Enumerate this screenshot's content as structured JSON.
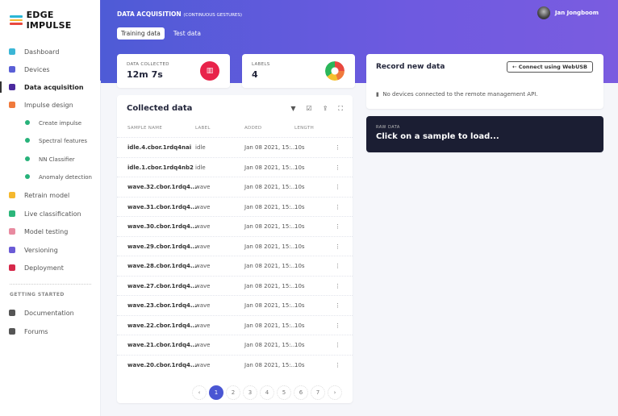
{
  "brand": {
    "name": "EDGE IMPULSE",
    "colors": [
      "#2bb6d6",
      "#f5b82e",
      "#e8483f",
      "#7bc94c"
    ]
  },
  "sidebar": {
    "items": [
      {
        "label": "Dashboard",
        "icon": "monitor-icon",
        "color": "#3bb6d6"
      },
      {
        "label": "Devices",
        "icon": "device-icon",
        "color": "#5a5fd6"
      },
      {
        "label": "Data acquisition",
        "icon": "database-icon",
        "color": "#4b2a9e",
        "active": true
      },
      {
        "label": "Impulse design",
        "icon": "pulse-icon",
        "color": "#f07a3c"
      },
      {
        "label": "Create impulse",
        "sub": true
      },
      {
        "label": "Spectral features",
        "sub": true
      },
      {
        "label": "NN Classifier",
        "sub": true
      },
      {
        "label": "Anomaly detection",
        "sub": true
      },
      {
        "label": "Retrain model",
        "icon": "retrain-icon",
        "color": "#f5b82e"
      },
      {
        "label": "Live classification",
        "icon": "live-icon",
        "color": "#2bb67a"
      },
      {
        "label": "Model testing",
        "icon": "testing-icon",
        "color": "#e88aa0"
      },
      {
        "label": "Versioning",
        "icon": "branch-icon",
        "color": "#6b5bd6"
      },
      {
        "label": "Deployment",
        "icon": "package-icon",
        "color": "#d6284a"
      }
    ],
    "section": "GETTING STARTED",
    "help": [
      {
        "label": "Documentation",
        "icon": "docs-icon",
        "color": "#555"
      },
      {
        "label": "Forums",
        "icon": "forum-icon",
        "color": "#555"
      }
    ]
  },
  "header": {
    "title": "DATA ACQUISITION",
    "subtitle": "(CONTINUOUS GESTURES)",
    "tabs": [
      "Training data",
      "Test data"
    ],
    "user": "Jan Jongboom"
  },
  "stats": {
    "collected_label": "DATA COLLECTED",
    "collected": "12m 7s",
    "labels_label": "LABELS",
    "labels": "4"
  },
  "collected": {
    "title": "Collected data",
    "columns": [
      "SAMPLE NAME",
      "LABEL",
      "ADDED",
      "LENGTH"
    ],
    "rows": [
      [
        "idle.4.cbor.1rdq4nai",
        "idle",
        "Jan 08 2021, 15:...",
        "10s"
      ],
      [
        "idle.1.cbor.1rdq4nb2",
        "idle",
        "Jan 08 2021, 15:...",
        "10s"
      ],
      [
        "wave.32.cbor.1rdq4...",
        "wave",
        "Jan 08 2021, 15:...",
        "10s"
      ],
      [
        "wave.31.cbor.1rdq4...",
        "wave",
        "Jan 08 2021, 15:...",
        "10s"
      ],
      [
        "wave.30.cbor.1rdq4...",
        "wave",
        "Jan 08 2021, 15:...",
        "10s"
      ],
      [
        "wave.29.cbor.1rdq4...",
        "wave",
        "Jan 08 2021, 15:...",
        "10s"
      ],
      [
        "wave.28.cbor.1rdq4...",
        "wave",
        "Jan 08 2021, 15:...",
        "10s"
      ],
      [
        "wave.27.cbor.1rdq4...",
        "wave",
        "Jan 08 2021, 15:...",
        "10s"
      ],
      [
        "wave.23.cbor.1rdq4...",
        "wave",
        "Jan 08 2021, 15:...",
        "10s"
      ],
      [
        "wave.22.cbor.1rdq4...",
        "wave",
        "Jan 08 2021, 15:...",
        "10s"
      ],
      [
        "wave.21.cbor.1rdq4...",
        "wave",
        "Jan 08 2021, 15:...",
        "10s"
      ],
      [
        "wave.20.cbor.1rdq4...",
        "wave",
        "Jan 08 2021, 15:...",
        "10s"
      ]
    ],
    "pages": [
      "‹",
      "1",
      "2",
      "3",
      "4",
      "5",
      "6",
      "7",
      "›"
    ],
    "current_page": "1"
  },
  "record": {
    "title": "Record new data",
    "button": "Connect using WebUSB",
    "message": "No devices connected to the remote management API."
  },
  "raw": {
    "caption": "RAW DATA",
    "text": "Click on a sample to load..."
  }
}
